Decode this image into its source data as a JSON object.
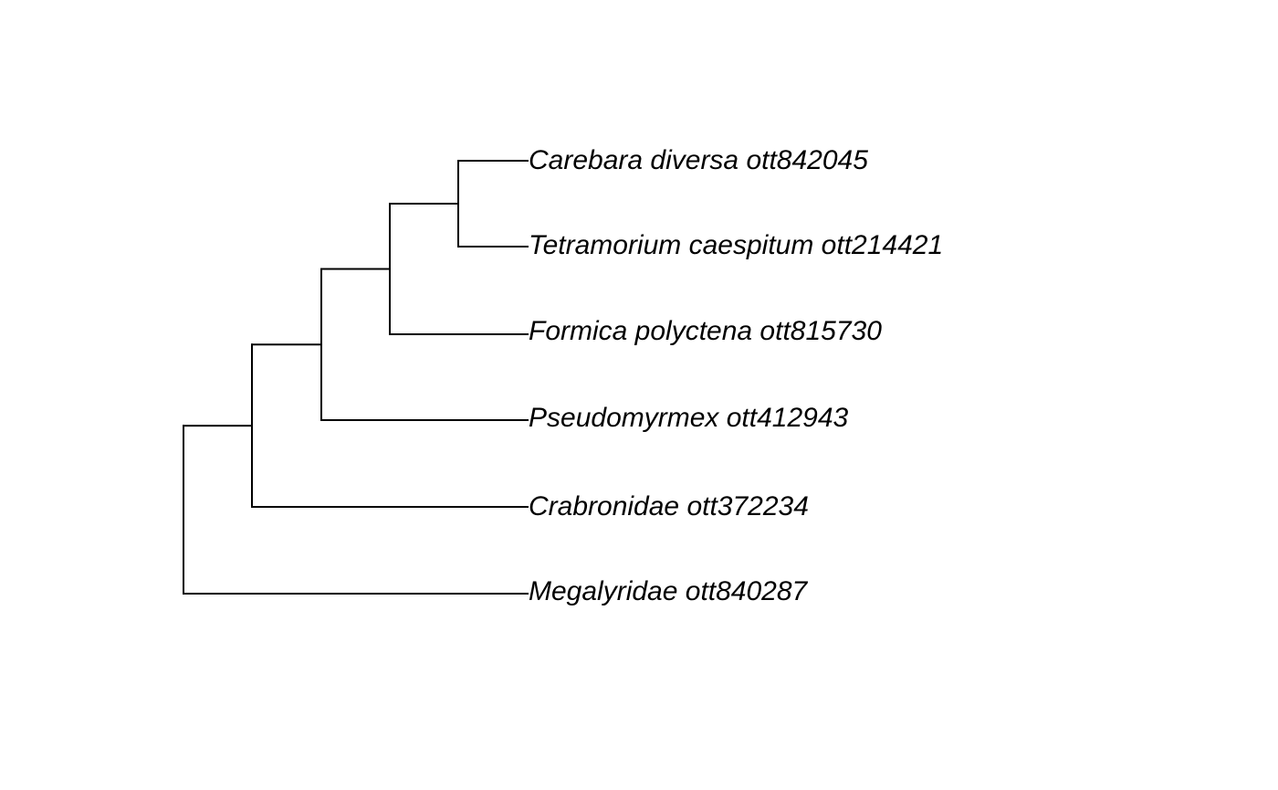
{
  "tree": {
    "edge_color": "#000000",
    "label_color": "#000000",
    "tips": [
      {
        "name": "Carebara diversa ott842045"
      },
      {
        "name": "Tetramorium caespitum ott214421"
      },
      {
        "name": "Formica polyctena ott815730"
      },
      {
        "name": "Pseudomyrmex ott412943"
      },
      {
        "name": "Crabronidae ott372234"
      },
      {
        "name": "Megalyridae ott840287"
      }
    ],
    "topology": "(((((Carebara diversa ott842045,Tetramorium caespitum ott214421),Formica polyctena ott815730),Pseudomyrmex ott412943),Crabronidae ott372234),Megalyridae ott840287);"
  }
}
